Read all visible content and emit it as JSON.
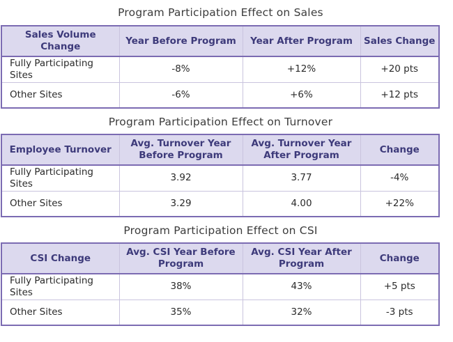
{
  "tables": [
    {
      "title": "Program Participation Effect on Sales",
      "headers": [
        "Sales Volume Change",
        "Year Before Program",
        "Year After Program",
        "Sales Change"
      ],
      "rows": [
        [
          "Fully Participating Sites",
          "-8%",
          "+12%",
          "+20 pts"
        ],
        [
          "Other Sites",
          "-6%",
          "+6%",
          "+12 pts"
        ]
      ]
    },
    {
      "title": "Program Participation Effect on Turnover",
      "headers": [
        "Employee Turnover",
        "Avg. Turnover Year Before Program",
        "Avg. Turnover Year After Program",
        "Change"
      ],
      "rows": [
        [
          "Fully Participating Sites",
          "3.92",
          "3.77",
          "-4%"
        ],
        [
          "Other Sites",
          "3.29",
          "4.00",
          "+22%"
        ]
      ]
    },
    {
      "title": "Program Participation Effect on CSI",
      "headers": [
        "CSI Change",
        "Avg. CSI Year Before Program",
        "Avg. CSI Year After Program",
        "Change"
      ],
      "rows": [
        [
          "Fully Participating Sites",
          "38%",
          "43%",
          "+5 pts"
        ],
        [
          "Other Sites",
          "35%",
          "32%",
          "-3 pts"
        ]
      ]
    }
  ]
}
